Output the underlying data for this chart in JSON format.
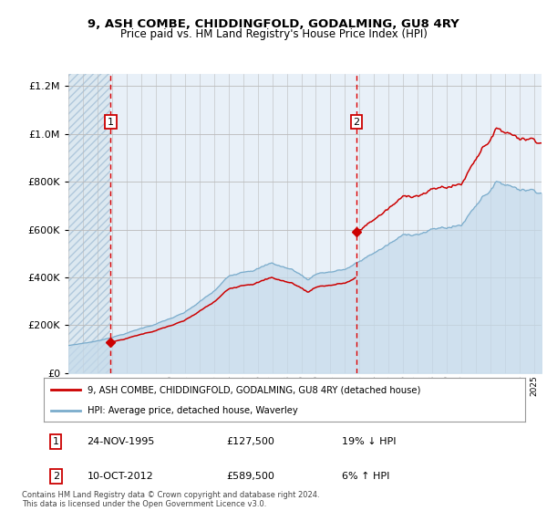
{
  "title": "9, ASH COMBE, CHIDDINGFOLD, GODALMING, GU8 4RY",
  "subtitle": "Price paid vs. HM Land Registry's House Price Index (HPI)",
  "legend_line1": "9, ASH COMBE, CHIDDINGFOLD, GODALMING, GU8 4RY (detached house)",
  "legend_line2": "HPI: Average price, detached house, Waverley",
  "sale1_date": "24-NOV-1995",
  "sale1_price": "£127,500",
  "sale1_hpi": "19% ↓ HPI",
  "sale2_date": "10-OCT-2012",
  "sale2_price": "£589,500",
  "sale2_hpi": "6% ↑ HPI",
  "footer": "Contains HM Land Registry data © Crown copyright and database right 2024.\nThis data is licensed under the Open Government Licence v3.0.",
  "sale1_year": 1995.9,
  "sale1_value": 127500,
  "sale2_year": 2012.78,
  "sale2_value": 589500,
  "ylim": [
    0,
    1250000
  ],
  "xlim_start": 1993,
  "xlim_end": 2025.5,
  "red_line_color": "#cc0000",
  "blue_line_color": "#7aaccc",
  "blue_fill_color": "#c5daea",
  "dashed_red": "#dd0000",
  "marker_color": "#cc0000",
  "bg_left_hatch": "#dce8f0",
  "bg_right": "#e8f0f8",
  "grid_color": "#bbbbbb",
  "background_fig": "#ffffff"
}
